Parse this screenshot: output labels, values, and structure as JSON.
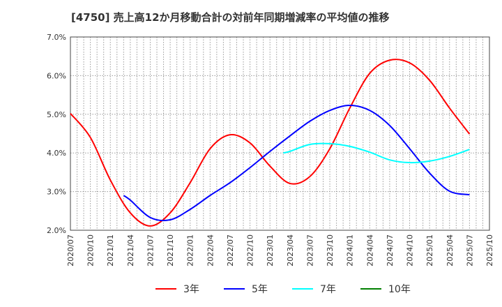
{
  "chart_data": {
    "type": "line",
    "title": "[4750]  売上高12か月移動合計の対前年同期増減率の平均値の推移",
    "xlabel": "",
    "ylabel": "",
    "x_start": "2020/07",
    "x_end": "2025/10",
    "x_ticks": [
      "2020/07",
      "2020/10",
      "2021/01",
      "2021/04",
      "2021/07",
      "2021/10",
      "2022/01",
      "2022/04",
      "2022/07",
      "2022/10",
      "2023/01",
      "2023/04",
      "2023/07",
      "2023/10",
      "2024/01",
      "2024/04",
      "2024/07",
      "2024/10",
      "2025/01",
      "2025/04",
      "2025/07",
      "2025/10"
    ],
    "y_ticks": [
      "2.0%",
      "3.0%",
      "4.0%",
      "5.0%",
      "6.0%",
      "7.0%"
    ],
    "ylim": [
      2.0,
      7.0
    ],
    "grid": true,
    "legend_position": "bottom",
    "series": [
      {
        "name": "3年",
        "color": "#ff0000",
        "points": [
          [
            "2020/07",
            5.02
          ],
          [
            "2020/10",
            4.4
          ],
          [
            "2021/01",
            3.3
          ],
          [
            "2021/04",
            2.45
          ],
          [
            "2021/07",
            2.11
          ],
          [
            "2021/10",
            2.45
          ],
          [
            "2022/01",
            3.23
          ],
          [
            "2022/04",
            4.11
          ],
          [
            "2022/07",
            4.47
          ],
          [
            "2022/10",
            4.26
          ],
          [
            "2023/01",
            3.66
          ],
          [
            "2023/04",
            3.21
          ],
          [
            "2023/07",
            3.39
          ],
          [
            "2023/10",
            4.11
          ],
          [
            "2024/01",
            5.16
          ],
          [
            "2024/04",
            6.06
          ],
          [
            "2024/07",
            6.4
          ],
          [
            "2024/10",
            6.33
          ],
          [
            "2025/01",
            5.88
          ],
          [
            "2025/04",
            5.16
          ],
          [
            "2025/07",
            4.49
          ]
        ]
      },
      {
        "name": "5年",
        "color": "#0000ff",
        "points": [
          [
            "2021/03",
            2.9
          ],
          [
            "2021/04",
            2.78
          ],
          [
            "2021/07",
            2.33
          ],
          [
            "2021/10",
            2.27
          ],
          [
            "2022/01",
            2.54
          ],
          [
            "2022/04",
            2.9
          ],
          [
            "2022/07",
            3.23
          ],
          [
            "2022/10",
            3.62
          ],
          [
            "2023/01",
            4.04
          ],
          [
            "2023/04",
            4.44
          ],
          [
            "2023/07",
            4.82
          ],
          [
            "2023/10",
            5.1
          ],
          [
            "2024/01",
            5.23
          ],
          [
            "2024/04",
            5.1
          ],
          [
            "2024/07",
            4.71
          ],
          [
            "2024/10",
            4.11
          ],
          [
            "2025/01",
            3.48
          ],
          [
            "2025/04",
            3.01
          ],
          [
            "2025/07",
            2.92
          ]
        ]
      },
      {
        "name": "7年",
        "color": "#00ffff",
        "points": [
          [
            "2023/03",
            4.0
          ],
          [
            "2023/04",
            4.04
          ],
          [
            "2023/07",
            4.22
          ],
          [
            "2023/10",
            4.24
          ],
          [
            "2024/01",
            4.17
          ],
          [
            "2024/04",
            4.02
          ],
          [
            "2024/07",
            3.82
          ],
          [
            "2024/10",
            3.75
          ],
          [
            "2025/01",
            3.79
          ],
          [
            "2025/04",
            3.91
          ],
          [
            "2025/07",
            4.09
          ]
        ]
      },
      {
        "name": "10年",
        "color": "#008000",
        "points": []
      }
    ]
  }
}
